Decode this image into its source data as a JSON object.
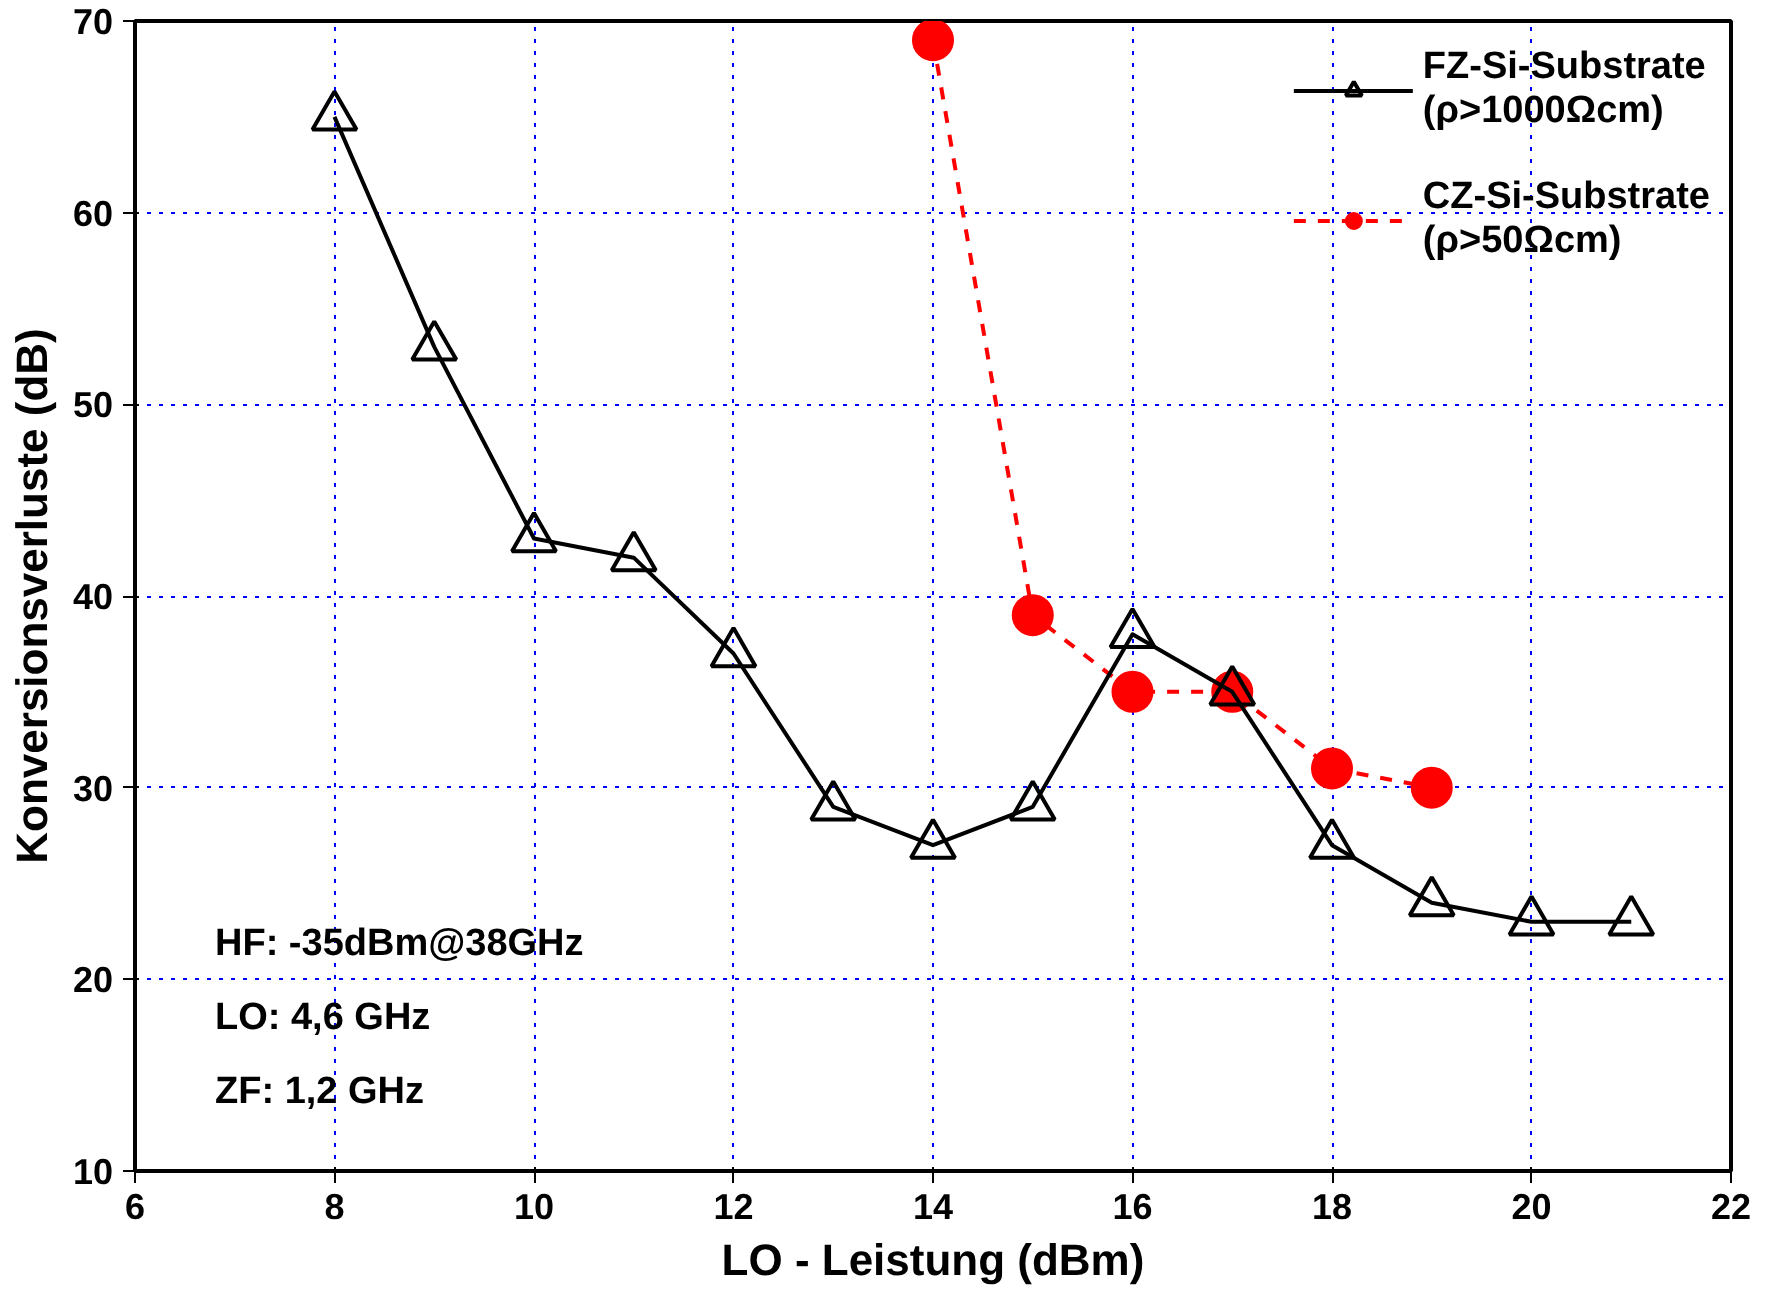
{
  "chart_data": {
    "type": "line",
    "xlabel": "LO - Leistung (dBm)",
    "ylabel": "Konversionsverluste (dB)",
    "xlim": [
      6,
      22
    ],
    "xticks": [
      6,
      8,
      10,
      12,
      14,
      16,
      18,
      20,
      22
    ],
    "ylim": [
      10,
      70
    ],
    "yticks": [
      10,
      20,
      30,
      40,
      50,
      60,
      70
    ],
    "grid": true,
    "legend": "top right",
    "series": [
      {
        "name": "FZ-Si-Substrate\n(ρ>1000Ωcm)",
        "color": "#000000",
        "marker": "triangle",
        "line_style": "solid",
        "x": [
          8,
          9,
          10,
          11,
          12,
          13,
          14,
          15,
          16,
          17,
          18,
          19,
          20,
          21
        ],
        "values": [
          65,
          53,
          43,
          42,
          37,
          29,
          27,
          29,
          38,
          35,
          27,
          24,
          23,
          23
        ]
      },
      {
        "name": "CZ-Si-Substrate\n(ρ>50Ωcm)",
        "color": "#ff0000",
        "marker": "circle",
        "line_style": "dashed",
        "x": [
          14,
          15,
          16,
          17,
          18,
          19
        ],
        "values": [
          69,
          39,
          35,
          35,
          31,
          30
        ]
      }
    ],
    "annotations": [
      "HF: -35dBm@38GHz",
      "LO: 4,6 GHz",
      "ZF:  1,2 GHz"
    ]
  }
}
